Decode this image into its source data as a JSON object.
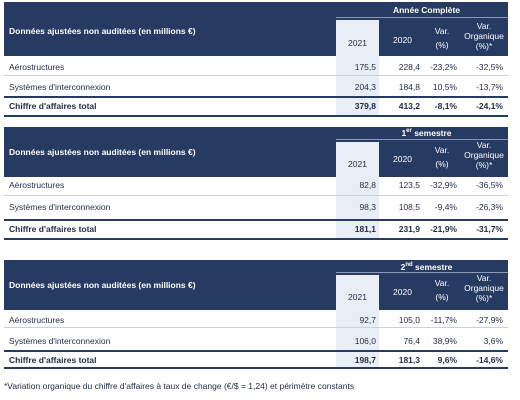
{
  "tables": [
    {
      "header_label": "Données ajustées non auditées (en millions €)",
      "group_title": "Année Complète",
      "group_sup": "",
      "group_title_after": "",
      "col_2021": "2021",
      "col_2020": "2020",
      "col_var1": "Var.",
      "col_var2": "(%)",
      "col_org1": "Var.",
      "col_org2": "Organique",
      "col_org3": "(%)*",
      "rows": [
        {
          "name": "Aérostructures",
          "v2021": "175,5",
          "v2020": "228,4",
          "var": "-23,2%",
          "org": "-32,5%"
        },
        {
          "name": "Systèmes d'interconnexion",
          "v2021": "204,3",
          "v2020": "184,8",
          "var": "10,5%",
          "org": "-13,7%"
        }
      ],
      "total": {
        "name": "Chiffre d'affaires total",
        "v2021": "379,8",
        "v2020": "413,2",
        "var": "-8,1%",
        "org": "-24,1%"
      }
    },
    {
      "header_label": "Données ajustées non auditées (en millions €)",
      "group_title": "1",
      "group_sup": "er",
      "group_title_after": " semestre",
      "col_2021": "2021",
      "col_2020": "2020",
      "col_var1": "Var.",
      "col_var2": "(%)",
      "col_org1": "Var.",
      "col_org2": "Organique",
      "col_org3": "(%)*",
      "rows": [
        {
          "name": "Aérostructures",
          "v2021": "82,8",
          "v2020": "123,5",
          "var": "-32,9%",
          "org": "-36,5%"
        },
        {
          "name": "Systèmes d'interconnexion",
          "v2021": "98,3",
          "v2020": "108,5",
          "var": "-9,4%",
          "org": "-26,3%"
        }
      ],
      "total": {
        "name": "Chiffre d'affaires total",
        "v2021": "181,1",
        "v2020": "231,9",
        "var": "-21,9%",
        "org": "-31,7%"
      }
    },
    {
      "header_label": "Données ajustées non auditées (en millions €)",
      "group_title": "2",
      "group_sup": "nd",
      "group_title_after": " semestre",
      "col_2021": "2021",
      "col_2020": "2020",
      "col_var1": "Var.",
      "col_var2": "(%)",
      "col_org1": "Var.",
      "col_org2": "Organique",
      "col_org3": "(%)*",
      "rows": [
        {
          "name": "Aérostructures",
          "v2021": "92,7",
          "v2020": "105,0",
          "var": "-11,7%",
          "org": "-27,9%"
        },
        {
          "name": "Systèmes d'interconnexion",
          "v2021": "106,0",
          "v2020": "76,4",
          "var": "38,9%",
          "org": "3,6%"
        }
      ],
      "total": {
        "name": "Chiffre d'affaires total",
        "v2021": "198,7",
        "v2020": "181,3",
        "var": "9,6%",
        "org": "-14,6%"
      }
    }
  ],
  "footnote": "*Variation organique du chiffre d'affaires à taux de change (€/$ = 1,24) et périmètre constants"
}
